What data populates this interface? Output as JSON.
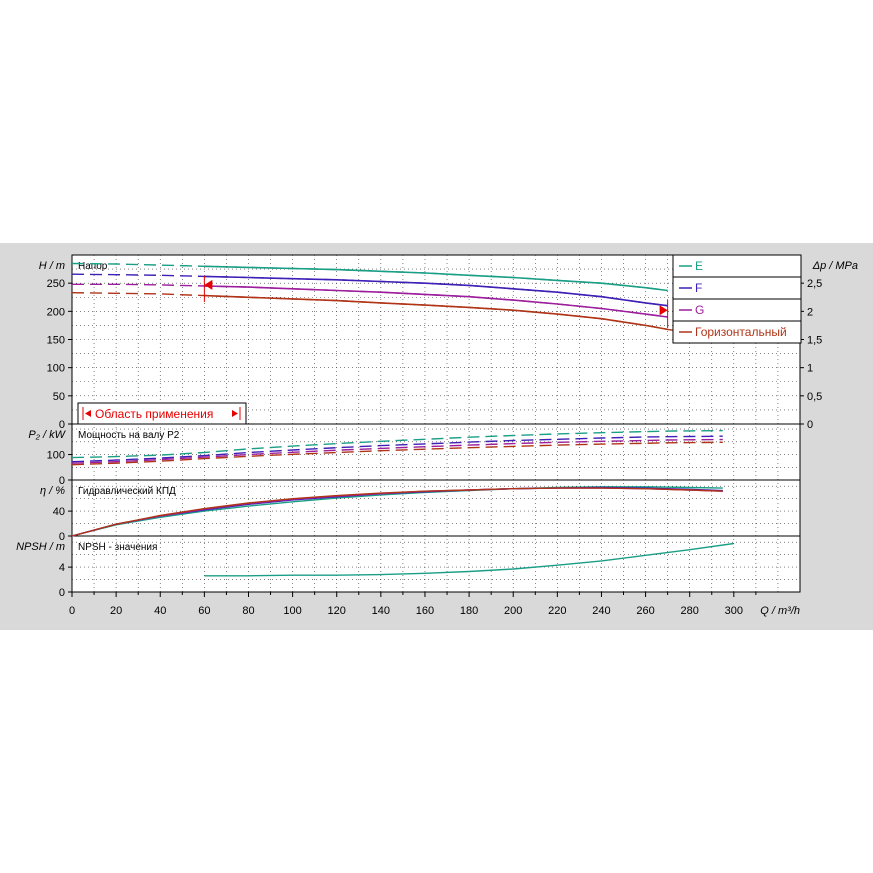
{
  "chart_data": {
    "type": "line",
    "x_axis": {
      "label": "Q / m³/h",
      "range": [
        0,
        330
      ],
      "ticks": [
        0,
        20,
        40,
        60,
        80,
        100,
        120,
        140,
        160,
        180,
        200,
        220,
        240,
        260,
        280,
        300
      ]
    },
    "colors": {
      "E": "#1a9e86",
      "F": "#3f1fb5",
      "G": "#9c1e9c",
      "H": "#b03418",
      "marker": "#e60000"
    },
    "legend": {
      "placement": "top-right",
      "items": [
        "E",
        "F",
        "G",
        "Горизонтальный"
      ]
    },
    "panels": [
      {
        "title": "Напор",
        "ylabel_left": "H / m",
        "ylabel_right": "Δp / MPa",
        "yticks": [
          0,
          50,
          100,
          150,
          200,
          250
        ],
        "yticks_right": [
          "0",
          "0,5",
          "1",
          "1,5",
          "2",
          "2,5"
        ],
        "ylim": [
          0,
          300
        ],
        "range_label": "Область применения",
        "range_bounds": [
          60,
          270
        ],
        "series": [
          {
            "name": "E",
            "x": [
              0,
              20,
              40,
              60,
              80,
              100,
              120,
              140,
              160,
              180,
              200,
              220,
              240,
              260,
              270
            ],
            "y": [
              285,
              284,
              282,
              280,
              278,
              276,
              274,
              271,
              268,
              264,
              260,
              255,
              250,
              242,
              237
            ]
          },
          {
            "name": "F",
            "x": [
              0,
              20,
              40,
              60,
              80,
              100,
              120,
              140,
              160,
              180,
              200,
              220,
              240,
              260,
              270
            ],
            "y": [
              266,
              265,
              264,
              262,
              260,
              258,
              256,
              253,
              250,
              246,
              240,
              234,
              226,
              215,
              210
            ]
          },
          {
            "name": "G",
            "x": [
              0,
              20,
              40,
              60,
              80,
              100,
              120,
              140,
              160,
              180,
              200,
              220,
              240,
              260,
              270
            ],
            "y": [
              248,
              248,
              247,
              245,
              243,
              240,
              237,
              234,
              230,
              226,
              220,
              213,
              205,
              195,
              190
            ]
          },
          {
            "name": "Горизонтальный",
            "x": [
              0,
              20,
              40,
              60,
              80,
              100,
              120,
              140,
              160,
              180,
              200,
              220,
              240,
              260,
              270,
              280,
              300
            ],
            "y": [
              233,
              232,
              231,
              228,
              225,
              222,
              219,
              215,
              211,
              207,
              202,
              195,
              187,
              175,
              168,
              162,
              150
            ]
          }
        ]
      },
      {
        "title": "Мощность на валу P2",
        "ylabel_left": "P₂ / kW",
        "yticks": [
          0,
          100
        ],
        "ylim": [
          0,
          220
        ],
        "series": [
          {
            "name": "E",
            "x": [
              0,
              20,
              40,
              60,
              80,
              100,
              120,
              140,
              160,
              180,
              200,
              220,
              240,
              260,
              270,
              280,
              295
            ],
            "y": [
              88,
              92,
              98,
              108,
              122,
              133,
              143,
              152,
              160,
              168,
              175,
              181,
              186,
              190,
              192,
              193,
              194
            ]
          },
          {
            "name": "F",
            "x": [
              0,
              20,
              40,
              60,
              80,
              100,
              120,
              140,
              160,
              180,
              200,
              220,
              240,
              260,
              270,
              280,
              295
            ],
            "y": [
              72,
              78,
              86,
              96,
              108,
              118,
              127,
              135,
              142,
              149,
              155,
              160,
              165,
              169,
              170,
              171,
              172
            ]
          },
          {
            "name": "G",
            "x": [
              0,
              20,
              40,
              60,
              80,
              100,
              120,
              140,
              160,
              180,
              200,
              220,
              240,
              260,
              270,
              280,
              295
            ],
            "y": [
              66,
              72,
              80,
              90,
              100,
              109,
              117,
              124,
              131,
              137,
              143,
              148,
              152,
              155,
              157,
              158,
              159
            ]
          },
          {
            "name": "Горизонтальный",
            "x": [
              0,
              20,
              40,
              60,
              80,
              100,
              120,
              140,
              160,
              180,
              200,
              220,
              240,
              260,
              270,
              280,
              295
            ],
            "y": [
              60,
              66,
              74,
              84,
              93,
              101,
              108,
              115,
              121,
              127,
              132,
              137,
              141,
              144,
              146,
              147,
              148
            ]
          }
        ]
      },
      {
        "title": "Гидравлический КПД",
        "ylabel_left": "η / %",
        "yticks": [
          0,
          40
        ],
        "ylim": [
          0,
          90
        ],
        "series": [
          {
            "name": "E",
            "x": [
              0,
              20,
              40,
              60,
              80,
              100,
              120,
              140,
              160,
              180,
              200,
              220,
              240,
              260,
              280,
              295
            ],
            "y": [
              0,
              18,
              30,
              40,
              48,
              55,
              61,
              66,
              70,
              73,
              76,
              78,
              79,
              79,
              78,
              77
            ]
          },
          {
            "name": "F",
            "x": [
              0,
              20,
              40,
              60,
              80,
              100,
              120,
              140,
              160,
              180,
              200,
              220,
              240,
              260,
              280,
              295
            ],
            "y": [
              0,
              19,
              32,
              42,
              51,
              58,
              63,
              68,
              71,
              74,
              76,
              77,
              78,
              77,
              75,
              73
            ]
          },
          {
            "name": "G",
            "x": [
              0,
              20,
              40,
              60,
              80,
              100,
              120,
              140,
              160,
              180,
              200,
              220,
              240,
              260,
              280,
              295
            ],
            "y": [
              0,
              19,
              32,
              43,
              52,
              59,
              64,
              68,
              72,
              74,
              76,
              77,
              77,
              76,
              74,
              72
            ]
          },
          {
            "name": "Горизонтальный",
            "x": [
              0,
              20,
              40,
              60,
              80,
              100,
              120,
              140,
              160,
              180,
              200,
              220,
              240,
              260,
              280,
              295
            ],
            "y": [
              0,
              19,
              33,
              44,
              53,
              60,
              65,
              69,
              72,
              74,
              76,
              77,
              77,
              76,
              74,
              72
            ]
          }
        ]
      },
      {
        "title": "NPSH - значения",
        "ylabel_left": "NPSH / m",
        "yticks": [
          0,
          4
        ],
        "ylim": [
          0,
          9
        ],
        "series": [
          {
            "name": "NPSH",
            "x": [
              60,
              80,
              100,
              120,
              140,
              160,
              180,
              200,
              220,
              240,
              260,
              280,
              300
            ],
            "y": [
              2.6,
              2.6,
              2.7,
              2.7,
              2.8,
              3.0,
              3.3,
              3.7,
              4.3,
              5.0,
              5.9,
              6.8,
              7.8
            ]
          }
        ]
      }
    ]
  }
}
